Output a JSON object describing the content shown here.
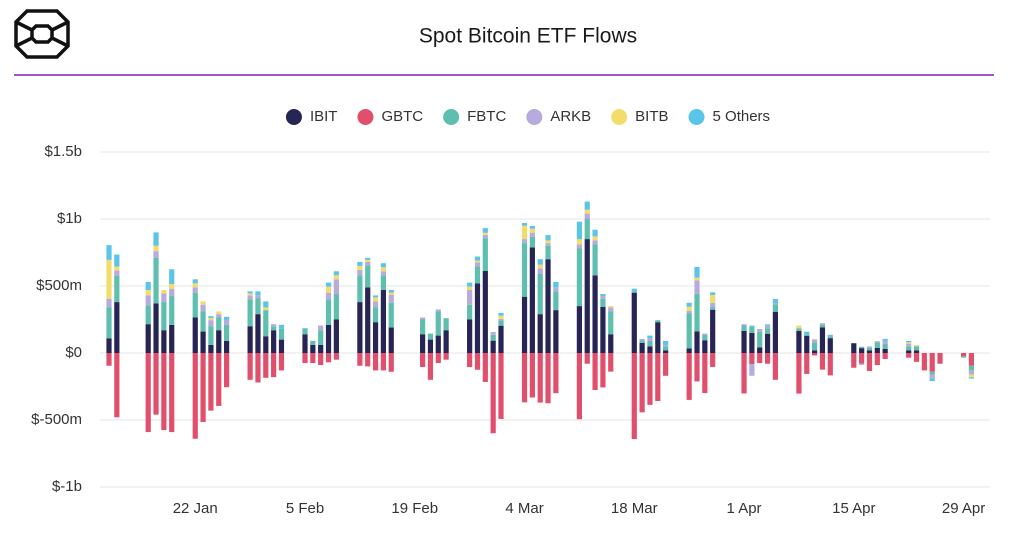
{
  "chart_data": {
    "type": "stacked-bar",
    "title": "Spot Bitcoin ETF Flows",
    "x": [
      "11 Jan",
      "12 Jan",
      "16 Jan",
      "17 Jan",
      "18 Jan",
      "19 Jan",
      "22 Jan",
      "23 Jan",
      "24 Jan",
      "25 Jan",
      "26 Jan",
      "29 Jan",
      "30 Jan",
      "31 Jan",
      "1 Feb",
      "2 Feb",
      "5 Feb",
      "6 Feb",
      "7 Feb",
      "8 Feb",
      "9 Feb",
      "12 Feb",
      "13 Feb",
      "14 Feb",
      "15 Feb",
      "16 Feb",
      "20 Feb",
      "21 Feb",
      "22 Feb",
      "23 Feb",
      "26 Feb",
      "27 Feb",
      "28 Feb",
      "29 Feb",
      "1 Mar",
      "4 Mar",
      "5 Mar",
      "6 Mar",
      "7 Mar",
      "8 Mar",
      "11 Mar",
      "12 Mar",
      "13 Mar",
      "14 Mar",
      "15 Mar",
      "18 Mar",
      "19 Mar",
      "20 Mar",
      "21 Mar",
      "22 Mar",
      "25 Mar",
      "26 Mar",
      "27 Mar",
      "28 Mar",
      "1 Apr",
      "2 Apr",
      "3 Apr",
      "4 Apr",
      "5 Apr",
      "8 Apr",
      "9 Apr",
      "10 Apr",
      "11 Apr",
      "12 Apr",
      "15 Apr",
      "16 Apr",
      "17 Apr",
      "18 Apr",
      "19 Apr",
      "22 Apr",
      "23 Apr",
      "24 Apr",
      "25 Apr",
      "26 Apr",
      "29 Apr",
      "30 Apr"
    ],
    "xticks": [
      "22 Jan",
      "5 Feb",
      "19 Feb",
      "4 Mar",
      "18 Mar",
      "1 Apr",
      "15 Apr",
      "29 Apr"
    ],
    "series": [
      {
        "name": "IBIT",
        "color": "#272456",
        "values": [
          110,
          380,
          215,
          370,
          170,
          210,
          265,
          160,
          60,
          170,
          90,
          200,
          290,
          125,
          170,
          100,
          140,
          60,
          60,
          210,
          250,
          380,
          490,
          230,
          470,
          190,
          140,
          100,
          130,
          170,
          250,
          520,
          612,
          92,
          204,
          420,
          788,
          290,
          700,
          320,
          350,
          850,
          580,
          345,
          140,
          450,
          75,
          50,
          230,
          20,
          35,
          162,
          95,
          323,
          165,
          150,
          42,
          144,
          308,
          165,
          129,
          20,
          192,
          111,
          73,
          36,
          19,
          38,
          30,
          20,
          20,
          0,
          0,
          0,
          0,
          0
        ]
      },
      {
        "name": "GBTC",
        "color": "#e04f6b",
        "values": [
          -95,
          -480,
          -590,
          -460,
          -575,
          -590,
          -640,
          -515,
          -430,
          -395,
          -255,
          -200,
          -220,
          -185,
          -180,
          -130,
          -75,
          -75,
          -90,
          -70,
          -50,
          -95,
          -100,
          -130,
          -130,
          -140,
          -105,
          -200,
          -75,
          -50,
          -105,
          -125,
          -216,
          -599,
          -492,
          -368,
          -332,
          -370,
          -375,
          -300,
          -494,
          -80,
          -276,
          -257,
          -139,
          -642,
          -443,
          -387,
          -358,
          -170,
          -350,
          -212,
          -299,
          -104,
          -302,
          -82,
          -75,
          -80,
          -200,
          -303,
          -156,
          -18,
          -124,
          -167,
          -110,
          -79,
          -134,
          -90,
          -45,
          -35,
          -66,
          -130,
          -140,
          -80,
          -25,
          -94
        ]
      },
      {
        "name": "FBTC",
        "color": "#5ebfae",
        "values": [
          230,
          195,
          140,
          340,
          210,
          215,
          185,
          150,
          140,
          95,
          120,
          200,
          120,
          195,
          30,
          80,
          45,
          30,
          110,
          190,
          190,
          200,
          165,
          110,
          110,
          185,
          110,
          45,
          180,
          90,
          110,
          125,
          245,
          44,
          40,
          400,
          80,
          300,
          100,
          140,
          430,
          150,
          230,
          60,
          170,
          10,
          20,
          40,
          15,
          30,
          260,
          280,
          40,
          20,
          40,
          45,
          117,
          40,
          55,
          20,
          10,
          60,
          20,
          15,
          0,
          10,
          20,
          40,
          40,
          30,
          30,
          0,
          -20,
          0,
          -10,
          -36
        ]
      },
      {
        "name": "ARKB",
        "color": "#b6aadf",
        "values": [
          65,
          40,
          75,
          50,
          65,
          55,
          40,
          50,
          45,
          25,
          40,
          30,
          20,
          0,
          15,
          0,
          0,
          0,
          35,
          50,
          110,
          40,
          25,
          45,
          30,
          60,
          15,
          0,
          15,
          0,
          110,
          30,
          25,
          20,
          10,
          30,
          30,
          40,
          20,
          30,
          30,
          40,
          30,
          20,
          30,
          0,
          10,
          20,
          0,
          10,
          20,
          100,
          10,
          30,
          10,
          -88,
          20,
          20,
          10,
          0,
          0,
          20,
          10,
          0,
          0,
          -10,
          10,
          10,
          20,
          20,
          0,
          0,
          -30,
          0,
          0,
          -31
        ]
      },
      {
        "name": "BITB",
        "color": "#f3dc6c",
        "values": [
          290,
          30,
          40,
          40,
          25,
          35,
          30,
          25,
          15,
          20,
          0,
          15,
          0,
          20,
          0,
          0,
          0,
          0,
          0,
          45,
          30,
          30,
          15,
          30,
          30,
          15,
          0,
          0,
          0,
          0,
          25,
          15,
          15,
          0,
          25,
          100,
          30,
          30,
          20,
          0,
          40,
          30,
          30,
          0,
          10,
          0,
          0,
          0,
          0,
          0,
          30,
          20,
          0,
          60,
          0,
          0,
          0,
          0,
          0,
          20,
          0,
          5,
          0,
          0,
          0,
          0,
          0,
          0,
          0,
          10,
          10,
          0,
          0,
          0,
          0,
          -20
        ]
      },
      {
        "name": "5 Others",
        "color": "#5bc4e9",
        "values": [
          110,
          90,
          60,
          100,
          0,
          110,
          30,
          0,
          15,
          0,
          20,
          15,
          30,
          45,
          0,
          30,
          0,
          0,
          0,
          30,
          30,
          30,
          15,
          15,
          30,
          20,
          0,
          0,
          0,
          0,
          30,
          30,
          35,
          0,
          20,
          20,
          20,
          40,
          40,
          40,
          130,
          60,
          50,
          15,
          0,
          20,
          0,
          20,
          0,
          30,
          30,
          80,
          0,
          20,
          0,
          10,
          0,
          10,
          30,
          0,
          20,
          0,
          0,
          10,
          0,
          0,
          0,
          0,
          15,
          10,
          0,
          0,
          -20,
          0,
          0,
          -10
        ]
      }
    ],
    "ylim": [
      -1000,
      1500
    ],
    "yticks": [
      {
        "value": -1000,
        "label": "$-1b"
      },
      {
        "value": -500,
        "label": "$-500m"
      },
      {
        "value": 0,
        "label": "$0"
      },
      {
        "value": 500,
        "label": "$500m"
      },
      {
        "value": 1000,
        "label": "$1b"
      },
      {
        "value": 1500,
        "label": "$1.5b"
      }
    ],
    "grid": true
  }
}
